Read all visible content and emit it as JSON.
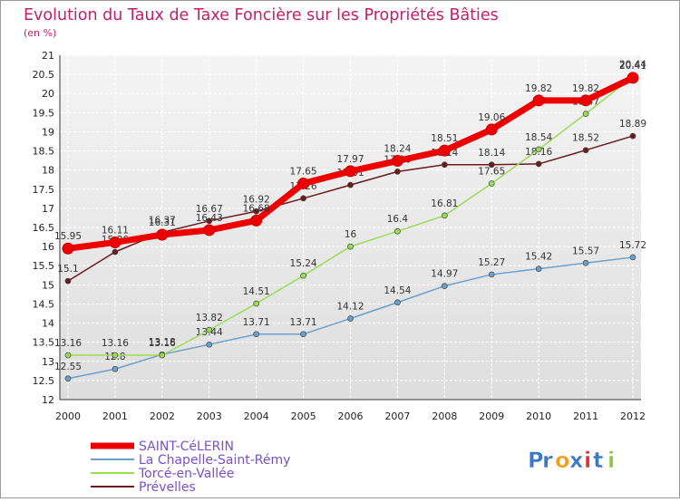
{
  "chart_data": {
    "type": "line",
    "title": "Evolution du Taux de Taxe Foncière sur les Propriétés Bâties",
    "ylabel": "(en %)",
    "xlabel": "",
    "x": [
      "2000",
      "2001",
      "2002",
      "2003",
      "2004",
      "2005",
      "2006",
      "2007",
      "2008",
      "2009",
      "2010",
      "2011",
      "2012"
    ],
    "ylim": [
      12,
      21
    ],
    "yticks": [
      "12",
      "12.5",
      "13",
      "13.5",
      "14",
      "14.5",
      "15",
      "15.5",
      "16",
      "16.5",
      "17",
      "17.5",
      "18",
      "18.5",
      "19",
      "19.5",
      "20",
      "20.5",
      "21"
    ],
    "grid": true,
    "legend_position": "bottom-left",
    "series": [
      {
        "name": "Prévelles",
        "color": "#6b1a1f",
        "values": [
          15.1,
          15.86,
          16.37,
          16.67,
          16.92,
          17.26,
          17.61,
          17.96,
          18.14,
          18.14,
          18.16,
          18.52,
          18.89
        ],
        "labels": [
          "15.1",
          "15.86",
          "16.37",
          "16.67",
          "16.92",
          "17.26",
          "17.61",
          "17.96",
          "18.14",
          "18.14",
          "18.16",
          "18.52",
          "18.89"
        ]
      },
      {
        "name": "La Chapelle-Saint-Rémy",
        "color": "#6b9fcc",
        "values": [
          12.55,
          12.8,
          13.18,
          13.44,
          13.71,
          13.71,
          14.12,
          14.54,
          14.97,
          15.27,
          15.42,
          15.57,
          15.72
        ],
        "labels": [
          "12.55",
          "12.8",
          "13.18",
          "13.44",
          "13.71",
          "13.71",
          "14.12",
          "14.54",
          "14.97",
          "15.27",
          "15.42",
          "15.57",
          "15.72"
        ]
      },
      {
        "name": "Torcé-en-Vallée",
        "color": "#99dd55",
        "values": [
          13.16,
          13.16,
          13.16,
          13.82,
          14.51,
          15.24,
          16.0,
          16.4,
          16.81,
          17.65,
          18.54,
          19.47,
          20.44
        ],
        "labels": [
          "13.16",
          "13.16",
          "13.16",
          "13.82",
          "14.51",
          "15.24",
          "16",
          "16.4",
          "16.81",
          "17.65",
          "18.54",
          "19.47",
          "20.44"
        ]
      },
      {
        "name": "SAINT-CéLERIN",
        "color": "#ee0000",
        "values": [
          15.95,
          16.11,
          16.31,
          16.43,
          16.68,
          17.65,
          17.97,
          18.24,
          18.51,
          19.06,
          19.82,
          19.82,
          20.41
        ],
        "labels": [
          "15.95",
          "16.11",
          "16.31",
          "16.43",
          "16.68",
          "17.65",
          "17.97",
          "18.24",
          "18.51",
          "19.06",
          "19.82",
          "19.82",
          "20.41"
        ]
      }
    ],
    "legend": [
      "SAINT-CéLERIN",
      "La Chapelle-Saint-Rémy",
      "Torcé-en-Vallée",
      "Prévelles"
    ]
  },
  "brand": {
    "letters": [
      "P",
      "r",
      "o",
      "x",
      "i",
      "t",
      "i"
    ],
    "colors": [
      "#3a78c8",
      "#3a78c8",
      "#f0a020",
      "#3a78c8",
      "#e03030",
      "#3a78c8",
      "#8cc63f"
    ]
  },
  "colors": {
    "title": "#c0206a",
    "legend_text": "#7a50c8",
    "axis_text": "#222222"
  }
}
